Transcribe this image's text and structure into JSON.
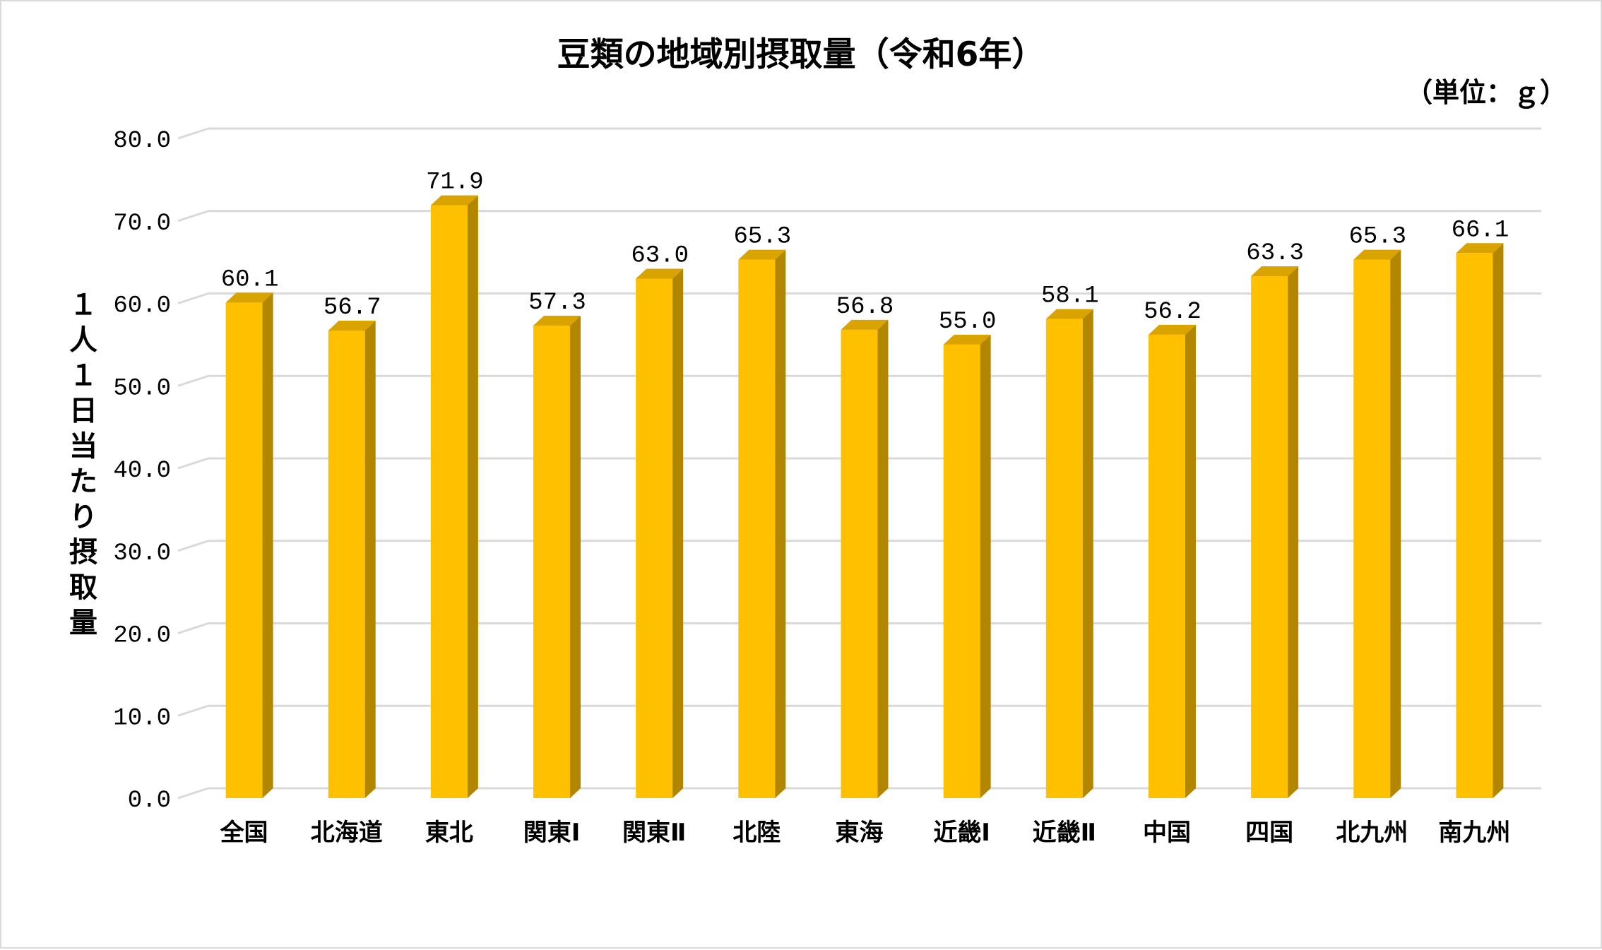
{
  "chart_data": {
    "type": "bar",
    "title": "豆類の地域別摂取量（令和6年）",
    "unit": "（単位：ｇ）",
    "ylabel": "１人１日当たり摂取量",
    "xlabel": "",
    "categories": [
      "全国",
      "北海道",
      "東北",
      "関東Ⅰ",
      "関東Ⅱ",
      "北陸",
      "東海",
      "近畿Ⅰ",
      "近畿Ⅱ",
      "中国",
      "四国",
      "北九州",
      "南九州"
    ],
    "values": [
      60.1,
      56.7,
      71.9,
      57.3,
      63.0,
      65.3,
      56.8,
      55.0,
      58.1,
      56.2,
      63.3,
      65.3,
      66.1
    ],
    "value_labels": [
      "60.1",
      "56.7",
      "71.9",
      "57.3",
      "63.0",
      "65.3",
      "56.8",
      "55.0",
      "58.1",
      "56.2",
      "63.3",
      "65.3",
      "66.1"
    ],
    "y_ticks": [
      "0.0",
      "10.0",
      "20.0",
      "30.0",
      "40.0",
      "50.0",
      "60.0",
      "70.0",
      "80.0"
    ],
    "ylim": [
      0,
      80
    ],
    "grid": true,
    "style": "3d-bar",
    "colors": {
      "bar_front": "#ffc000",
      "bar_side": "#b38600",
      "bar_top": "#d9a300",
      "grid": "#d9d9d9",
      "border": "#d9d9d9"
    }
  }
}
